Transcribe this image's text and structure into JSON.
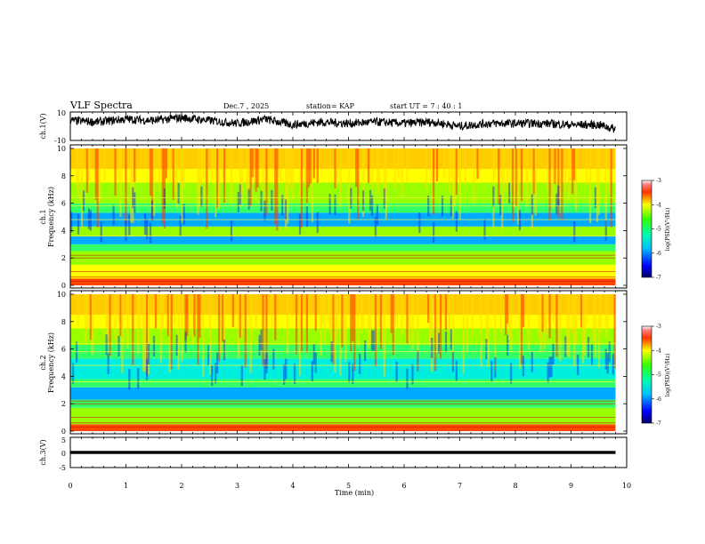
{
  "header": {
    "title": "VLF Spectra",
    "date": "Dec.7 , 2025",
    "station": "station= KAP",
    "start": "start  UT =   7 : 40 : 1"
  },
  "chart_data": [
    {
      "type": "line",
      "name": "ch1-waveform",
      "ylabel": "ch.1(V)",
      "ylim": [
        -10,
        10
      ],
      "yticks": [
        "10",
        "-10"
      ],
      "xlim": [
        0,
        10
      ],
      "envelope_x_min": [
        0,
        0.5,
        1,
        1.5,
        2,
        2.5,
        3,
        3.5,
        4,
        4.5,
        5,
        5.5,
        6,
        6.5,
        7,
        7.5,
        8,
        8.5,
        9,
        9.5,
        9.8
      ],
      "envelope_y_center": [
        4,
        3,
        5,
        4,
        6,
        4,
        2,
        5,
        1,
        3,
        2,
        3,
        2,
        3,
        0,
        2,
        2,
        2,
        1,
        1,
        -2
      ]
    },
    {
      "type": "heatmap",
      "name": "ch1-spectrogram",
      "ylabel": "ch.1\nFrequency  (kHz)",
      "ylim": [
        0,
        10
      ],
      "yticks": [
        "0",
        "2",
        "4",
        "6",
        "8",
        "10"
      ],
      "xlim": [
        0,
        10
      ],
      "data_x_max": 9.8,
      "colorbar": {
        "label": "log(PSD)(V²/Hz)",
        "range": [
          -7,
          -3
        ],
        "ticks": [
          "-3",
          "-4",
          "-5",
          "-6",
          "-7"
        ]
      },
      "bands": [
        {
          "f0": 0,
          "f1": 0.5,
          "level": 4.0
        },
        {
          "f0": 0.5,
          "f1": 1.5,
          "level": 2.8
        },
        {
          "f0": 1.5,
          "f1": 2.5,
          "level": 2.5
        },
        {
          "f0": 2.5,
          "f1": 3.0,
          "level": 2.2
        },
        {
          "f0": 3.0,
          "f1": 3.6,
          "level": 1.2
        },
        {
          "f0": 3.6,
          "f1": 4.3,
          "level": 2.3
        },
        {
          "f0": 4.3,
          "f1": 5.3,
          "level": 1.0
        },
        {
          "f0": 5.3,
          "f1": 6.0,
          "level": 1.9
        },
        {
          "f0": 6.0,
          "f1": 6.5,
          "level": 2.4
        },
        {
          "f0": 6.5,
          "f1": 7.5,
          "level": 2.7
        },
        {
          "f0": 7.5,
          "f1": 8.5,
          "level": 3.0
        },
        {
          "f0": 8.5,
          "f1": 10,
          "level": 3.4
        }
      ]
    },
    {
      "type": "heatmap",
      "name": "ch2-spectrogram",
      "ylabel": "ch.2\nFrequency  (kHz)",
      "ylim": [
        0,
        10
      ],
      "yticks": [
        "0",
        "2",
        "4",
        "6",
        "8",
        "10"
      ],
      "xlim": [
        0,
        10
      ],
      "data_x_max": 9.8,
      "colorbar": {
        "label": "log(PSD)(V²/Hz)",
        "range": [
          -7,
          -3
        ],
        "ticks": [
          "-3",
          "-4",
          "-5",
          "-6",
          "-7"
        ]
      },
      "bands": [
        {
          "f0": 0,
          "f1": 0.5,
          "level": 3.9
        },
        {
          "f0": 0.5,
          "f1": 1.7,
          "level": 2.6
        },
        {
          "f0": 1.7,
          "f1": 2.3,
          "level": 1.8
        },
        {
          "f0": 2.3,
          "f1": 3.2,
          "level": 1.2
        },
        {
          "f0": 3.2,
          "f1": 3.8,
          "level": 2.0
        },
        {
          "f0": 3.8,
          "f1": 5.3,
          "level": 1.4
        },
        {
          "f0": 5.3,
          "f1": 6.3,
          "level": 2.0
        },
        {
          "f0": 6.3,
          "f1": 7.5,
          "level": 2.6
        },
        {
          "f0": 7.5,
          "f1": 8.5,
          "level": 3.0
        },
        {
          "f0": 8.5,
          "f1": 10,
          "level": 3.4
        }
      ]
    },
    {
      "type": "line",
      "name": "ch3-waveform",
      "ylabel": "ch.3(V)",
      "ylim": [
        -5,
        5
      ],
      "yticks": [
        "5",
        "0",
        "-5"
      ],
      "xlim": [
        0,
        10
      ],
      "band_center": 0,
      "band_half_width": 0.5
    }
  ],
  "xaxis": {
    "label": "Time  (min)",
    "ticks": [
      "0",
      "1",
      "2",
      "3",
      "4",
      "5",
      "6",
      "7",
      "8",
      "9",
      "10"
    ]
  }
}
